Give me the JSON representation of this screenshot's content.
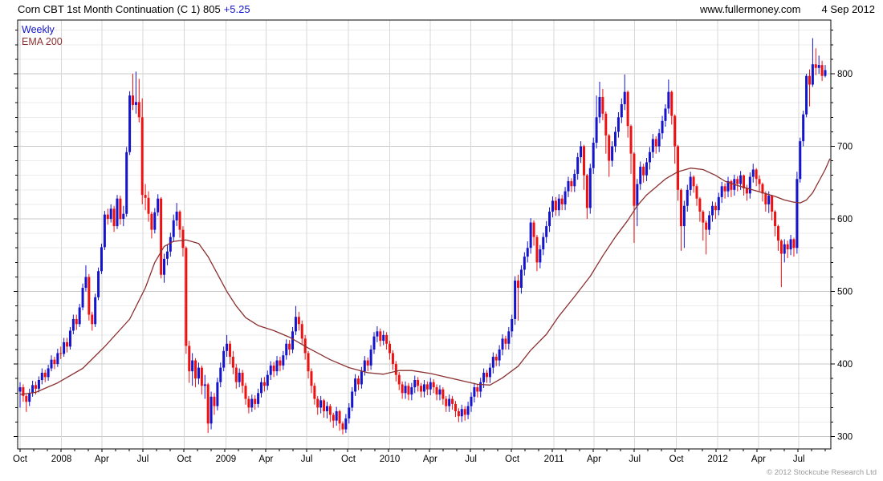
{
  "header": {
    "title": "Corn CBT 1st Month Continuation (C 1)",
    "price": "805",
    "change": "+5.25",
    "website": "www.fullermoney.com",
    "date": "4 Sep 2012"
  },
  "legend": {
    "weekly": "Weekly",
    "ema": "EMA 200"
  },
  "footer": {
    "copyright": "© 2012 Stockcube Research Ltd"
  },
  "colors": {
    "up": "#1414cc",
    "down": "#ee1111",
    "ema": "#8b3030",
    "change_text": "#1414cc",
    "grid_minor": "#ebebeb",
    "grid_major": "#c8c8c8",
    "grid_vert": "#d7d7d7",
    "axis": "#000000",
    "copyright": "#9a9a9a"
  },
  "chart_data": {
    "type": "candlestick",
    "title": "Corn CBT 1st Month Continuation (C 1)",
    "interval": "weekly",
    "overlay": "EMA 200",
    "last_price": 805,
    "change": 5.25,
    "start": "Oct 2007",
    "end": "4 Sep 2012",
    "first_open": 362,
    "y_axis": {
      "ticks": [
        300,
        400,
        500,
        600,
        700,
        800
      ],
      "minor_step": 20,
      "range": [
        283,
        874
      ]
    },
    "x_axis": {
      "months_total": 60,
      "labels": [
        {
          "text": "Oct",
          "week": 0
        },
        {
          "text": "2008",
          "week": 13.2
        },
        {
          "text": "Apr",
          "week": 26.1
        },
        {
          "text": "Jul",
          "week": 39.2
        },
        {
          "text": "Oct",
          "week": 52.4
        },
        {
          "text": "2009",
          "week": 65.7
        },
        {
          "text": "Apr",
          "week": 78.5
        },
        {
          "text": "Jul",
          "week": 91.5
        },
        {
          "text": "Oct",
          "week": 104.8
        },
        {
          "text": "2010",
          "week": 118.0
        },
        {
          "text": "Apr",
          "week": 130.9
        },
        {
          "text": "Jul",
          "week": 143.9
        },
        {
          "text": "Oct",
          "week": 157.1
        },
        {
          "text": "2011",
          "week": 170.4
        },
        {
          "text": "Apr",
          "week": 183.2
        },
        {
          "text": "Jul",
          "week": 196.2
        },
        {
          "text": "Oct",
          "week": 209.5
        },
        {
          "text": "2012",
          "week": 222.7
        },
        {
          "text": "Apr",
          "week": 235.7
        },
        {
          "text": "Jul",
          "week": 248.6
        }
      ]
    },
    "weekly_hlc": [
      [
        375,
        340,
        368
      ],
      [
        372,
        348,
        356
      ],
      [
        358,
        334,
        348
      ],
      [
        366,
        342,
        360
      ],
      [
        377,
        355,
        371
      ],
      [
        376,
        358,
        366
      ],
      [
        383,
        361,
        378
      ],
      [
        394,
        372,
        388
      ],
      [
        392,
        375,
        382
      ],
      [
        399,
        377,
        394
      ],
      [
        412,
        390,
        406
      ],
      [
        410,
        393,
        400
      ],
      [
        421,
        396,
        415
      ],
      [
        424,
        407,
        414
      ],
      [
        436,
        410,
        430
      ],
      [
        436,
        416,
        424
      ],
      [
        451,
        420,
        446
      ],
      [
        468,
        441,
        462
      ],
      [
        468,
        447,
        455
      ],
      [
        483,
        451,
        478
      ],
      [
        511,
        474,
        505
      ],
      [
        536,
        500,
        520
      ],
      [
        524,
        460,
        468
      ],
      [
        472,
        446,
        455
      ],
      [
        497,
        451,
        492
      ],
      [
        533,
        488,
        528
      ],
      [
        566,
        524,
        561
      ],
      [
        611,
        557,
        606
      ],
      [
        614,
        592,
        600
      ],
      [
        620,
        595,
        614
      ],
      [
        618,
        582,
        590
      ],
      [
        633,
        586,
        628
      ],
      [
        632,
        592,
        600
      ],
      [
        618,
        590,
        607
      ],
      [
        699,
        603,
        692
      ],
      [
        776,
        688,
        770
      ],
      [
        800,
        750,
        757
      ],
      [
        803,
        745,
        761
      ],
      [
        793,
        733,
        740
      ],
      [
        766,
        620,
        633
      ],
      [
        648,
        612,
        629
      ],
      [
        638,
        596,
        607
      ],
      [
        610,
        573,
        585
      ],
      [
        615,
        580,
        609
      ],
      [
        634,
        604,
        628
      ],
      [
        630,
        518,
        523
      ],
      [
        552,
        512,
        545
      ],
      [
        565,
        536,
        555
      ],
      [
        581,
        548,
        575
      ],
      [
        606,
        568,
        598
      ],
      [
        622,
        590,
        610
      ],
      [
        612,
        574,
        585
      ],
      [
        590,
        548,
        560
      ],
      [
        562,
        414,
        425
      ],
      [
        432,
        374,
        390
      ],
      [
        415,
        370,
        405
      ],
      [
        408,
        368,
        380
      ],
      [
        402,
        372,
        395
      ],
      [
        398,
        358,
        370
      ],
      [
        385,
        352,
        372
      ],
      [
        374,
        305,
        318
      ],
      [
        362,
        310,
        355
      ],
      [
        360,
        330,
        342
      ],
      [
        381,
        336,
        375
      ],
      [
        402,
        368,
        395
      ],
      [
        424,
        390,
        418
      ],
      [
        440,
        410,
        428
      ],
      [
        432,
        400,
        410
      ],
      [
        418,
        386,
        395
      ],
      [
        400,
        366,
        375
      ],
      [
        394,
        368,
        388
      ],
      [
        392,
        360,
        370
      ],
      [
        374,
        344,
        352
      ],
      [
        356,
        332,
        340
      ],
      [
        358,
        334,
        352
      ],
      [
        357,
        337,
        345
      ],
      [
        366,
        340,
        360
      ],
      [
        381,
        354,
        375
      ],
      [
        382,
        362,
        370
      ],
      [
        391,
        364,
        385
      ],
      [
        404,
        378,
        398
      ],
      [
        403,
        382,
        390
      ],
      [
        411,
        384,
        405
      ],
      [
        410,
        390,
        398
      ],
      [
        418,
        392,
        412
      ],
      [
        434,
        406,
        428
      ],
      [
        433,
        412,
        420
      ],
      [
        451,
        415,
        445
      ],
      [
        480,
        440,
        465
      ],
      [
        472,
        446,
        455
      ],
      [
        460,
        426,
        435
      ],
      [
        440,
        406,
        415
      ],
      [
        418,
        380,
        390
      ],
      [
        394,
        360,
        370
      ],
      [
        374,
        344,
        352
      ],
      [
        356,
        330,
        340
      ],
      [
        356,
        332,
        350
      ],
      [
        352,
        326,
        335
      ],
      [
        348,
        325,
        342
      ],
      [
        345,
        320,
        330
      ],
      [
        333,
        312,
        322
      ],
      [
        341,
        315,
        335
      ],
      [
        337,
        308,
        318
      ],
      [
        321,
        303,
        310
      ],
      [
        331,
        305,
        325
      ],
      [
        346,
        318,
        340
      ],
      [
        368,
        335,
        362
      ],
      [
        386,
        356,
        380
      ],
      [
        384,
        364,
        372
      ],
      [
        396,
        366,
        390
      ],
      [
        411,
        384,
        405
      ],
      [
        409,
        390,
        398
      ],
      [
        426,
        392,
        420
      ],
      [
        444,
        414,
        438
      ],
      [
        452,
        430,
        445
      ],
      [
        449,
        424,
        432
      ],
      [
        446,
        426,
        440
      ],
      [
        444,
        420,
        428
      ],
      [
        432,
        406,
        415
      ],
      [
        419,
        392,
        400
      ],
      [
        404,
        376,
        385
      ],
      [
        389,
        364,
        372
      ],
      [
        376,
        352,
        360
      ],
      [
        376,
        352,
        370
      ],
      [
        374,
        350,
        358
      ],
      [
        374,
        350,
        368
      ],
      [
        384,
        360,
        378
      ],
      [
        382,
        362,
        370
      ],
      [
        374,
        354,
        362
      ],
      [
        378,
        354,
        372
      ],
      [
        376,
        357,
        365
      ],
      [
        381,
        357,
        375
      ],
      [
        379,
        360,
        368
      ],
      [
        372,
        350,
        358
      ],
      [
        371,
        350,
        365
      ],
      [
        368,
        344,
        352
      ],
      [
        356,
        334,
        342
      ],
      [
        358,
        334,
        352
      ],
      [
        356,
        337,
        345
      ],
      [
        349,
        327,
        335
      ],
      [
        339,
        320,
        328
      ],
      [
        344,
        320,
        338
      ],
      [
        342,
        322,
        330
      ],
      [
        348,
        324,
        342
      ],
      [
        361,
        334,
        355
      ],
      [
        374,
        347,
        368
      ],
      [
        372,
        354,
        362
      ],
      [
        381,
        354,
        375
      ],
      [
        394,
        367,
        388
      ],
      [
        392,
        374,
        382
      ],
      [
        401,
        374,
        395
      ],
      [
        416,
        387,
        410
      ],
      [
        414,
        397,
        405
      ],
      [
        426,
        397,
        420
      ],
      [
        441,
        412,
        435
      ],
      [
        439,
        420,
        428
      ],
      [
        451,
        420,
        445
      ],
      [
        468,
        437,
        462
      ],
      [
        521,
        454,
        515
      ],
      [
        523,
        460,
        505
      ],
      [
        536,
        497,
        530
      ],
      [
        554,
        522,
        548
      ],
      [
        569,
        540,
        560
      ],
      [
        601,
        552,
        595
      ],
      [
        598,
        563,
        575
      ],
      [
        578,
        528,
        540
      ],
      [
        564,
        532,
        558
      ],
      [
        581,
        550,
        575
      ],
      [
        597,
        567,
        590
      ],
      [
        616,
        582,
        610
      ],
      [
        631,
        602,
        625
      ],
      [
        630,
        604,
        612
      ],
      [
        634,
        604,
        628
      ],
      [
        633,
        612,
        620
      ],
      [
        644,
        612,
        638
      ],
      [
        658,
        630,
        652
      ],
      [
        656,
        637,
        645
      ],
      [
        668,
        637,
        662
      ],
      [
        691,
        654,
        685
      ],
      [
        707,
        677,
        700
      ],
      [
        702,
        640,
        660
      ],
      [
        662,
        600,
        615
      ],
      [
        676,
        607,
        670
      ],
      [
        712,
        662,
        705
      ],
      [
        770,
        697,
        740
      ],
      [
        789,
        732,
        768
      ],
      [
        779,
        736,
        745
      ],
      [
        748,
        690,
        715
      ],
      [
        717,
        658,
        680
      ],
      [
        707,
        672,
        700
      ],
      [
        727,
        692,
        720
      ],
      [
        747,
        712,
        740
      ],
      [
        766,
        732,
        758
      ],
      [
        799,
        750,
        775
      ],
      [
        777,
        712,
        728
      ],
      [
        730,
        662,
        690
      ],
      [
        692,
        567,
        618
      ],
      [
        655,
        590,
        648
      ],
      [
        679,
        640,
        672
      ],
      [
        676,
        650,
        660
      ],
      [
        684,
        652,
        678
      ],
      [
        699,
        668,
        692
      ],
      [
        717,
        684,
        710
      ],
      [
        714,
        690,
        700
      ],
      [
        724,
        692,
        718
      ],
      [
        742,
        710,
        735
      ],
      [
        758,
        727,
        752
      ],
      [
        792,
        745,
        775
      ],
      [
        777,
        730,
        742
      ],
      [
        744,
        676,
        700
      ],
      [
        702,
        625,
        640
      ],
      [
        642,
        556,
        590
      ],
      [
        625,
        560,
        618
      ],
      [
        647,
        610,
        640
      ],
      [
        665,
        632,
        658
      ],
      [
        660,
        636,
        645
      ],
      [
        648,
        618,
        628
      ],
      [
        630,
        596,
        610
      ],
      [
        612,
        570,
        595
      ],
      [
        598,
        551,
        585
      ],
      [
        611,
        578,
        605
      ],
      [
        624,
        596,
        618
      ],
      [
        623,
        600,
        612
      ],
      [
        636,
        605,
        630
      ],
      [
        651,
        622,
        645
      ],
      [
        649,
        628,
        638
      ],
      [
        658,
        630,
        652
      ],
      [
        654,
        630,
        640
      ],
      [
        661,
        632,
        655
      ],
      [
        659,
        638,
        648
      ],
      [
        666,
        640,
        660
      ],
      [
        661,
        632,
        642
      ],
      [
        647,
        625,
        635
      ],
      [
        664,
        628,
        658
      ],
      [
        676,
        650,
        668
      ],
      [
        670,
        645,
        655
      ],
      [
        660,
        638,
        648
      ],
      [
        650,
        624,
        635
      ],
      [
        638,
        610,
        620
      ],
      [
        638,
        608,
        632
      ],
      [
        633,
        598,
        610
      ],
      [
        612,
        576,
        590
      ],
      [
        592,
        556,
        570
      ],
      [
        572,
        506,
        552
      ],
      [
        572,
        540,
        565
      ],
      [
        570,
        546,
        558
      ],
      [
        578,
        550,
        572
      ],
      [
        574,
        548,
        560
      ],
      [
        665,
        552,
        655
      ],
      [
        712,
        650,
        707
      ],
      [
        749,
        700,
        744
      ],
      [
        800,
        740,
        797
      ],
      [
        806,
        755,
        785
      ],
      [
        849,
        782,
        813
      ],
      [
        835,
        798,
        808
      ],
      [
        825,
        800,
        812
      ],
      [
        818,
        790,
        797
      ],
      [
        812,
        795,
        805
      ]
    ],
    "ema_200": [
      [
        0,
        358
      ],
      [
        5,
        361
      ],
      [
        12,
        374
      ],
      [
        20,
        394
      ],
      [
        27,
        424
      ],
      [
        35,
        462
      ],
      [
        40,
        505
      ],
      [
        43,
        540
      ],
      [
        46,
        562
      ],
      [
        49,
        569
      ],
      [
        53,
        571
      ],
      [
        57,
        566
      ],
      [
        60,
        548
      ],
      [
        63,
        524
      ],
      [
        66,
        500
      ],
      [
        69,
        480
      ],
      [
        72,
        464
      ],
      [
        76,
        453
      ],
      [
        81,
        446
      ],
      [
        86,
        437
      ],
      [
        92,
        422
      ],
      [
        99,
        406
      ],
      [
        105,
        395
      ],
      [
        111,
        388
      ],
      [
        116,
        386
      ],
      [
        121,
        391
      ],
      [
        125,
        391
      ],
      [
        131,
        387
      ],
      [
        136,
        382
      ],
      [
        141,
        377
      ],
      [
        146,
        372
      ],
      [
        150,
        371
      ],
      [
        154,
        381
      ],
      [
        159,
        397
      ],
      [
        163,
        419
      ],
      [
        168,
        441
      ],
      [
        172,
        466
      ],
      [
        177,
        493
      ],
      [
        182,
        521
      ],
      [
        186,
        549
      ],
      [
        190,
        575
      ],
      [
        194,
        598
      ],
      [
        197,
        618
      ],
      [
        200,
        633
      ],
      [
        203,
        644
      ],
      [
        206,
        655
      ],
      [
        210,
        665
      ],
      [
        214,
        670
      ],
      [
        218,
        668
      ],
      [
        222,
        660
      ],
      [
        225,
        652
      ],
      [
        229,
        646
      ],
      [
        233,
        641
      ],
      [
        237,
        636
      ],
      [
        241,
        631
      ],
      [
        244,
        626
      ],
      [
        247,
        623
      ],
      [
        249,
        622
      ],
      [
        251,
        626
      ],
      [
        253,
        636
      ],
      [
        255,
        652
      ],
      [
        257,
        668
      ],
      [
        258.5,
        683
      ]
    ]
  }
}
